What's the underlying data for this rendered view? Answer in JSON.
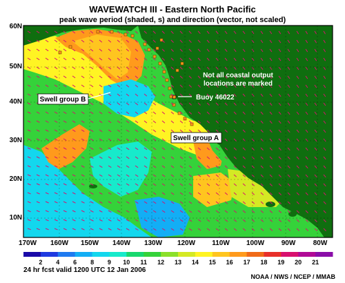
{
  "title": "WAVEWATCH III - Eastern North Pacific",
  "subtitle": "peak wave period (shaded, s) and direction (vector, not scaled)",
  "latitude_labels": [
    "60N",
    "50N",
    "40N",
    "30N",
    "20N",
    "10N"
  ],
  "longitude_labels": [
    "170W",
    "160W",
    "150W",
    "140W",
    "130W",
    "120W",
    "110W",
    "100W",
    "90W",
    "80W"
  ],
  "colorbar": {
    "values": [
      "2",
      "4",
      "6",
      "8",
      "9",
      "10",
      "11",
      "12",
      "13",
      "14",
      "15",
      "16",
      "17",
      "18",
      "19",
      "20",
      "21"
    ],
    "colors": [
      "#1a0aa8",
      "#1f3ae0",
      "#1f7af0",
      "#13aef5",
      "#13d7ee",
      "#17eacb",
      "#18d86e",
      "#35d23a",
      "#8be02a",
      "#d4e924",
      "#fff423",
      "#ffc51f",
      "#ff9a1c",
      "#f06a18",
      "#e8302a",
      "#d8106e",
      "#b00a96",
      "#8a0ea8"
    ]
  },
  "annotations": {
    "swell_b": "Swell group B",
    "swell_a": "Swell group A",
    "note": "Not all coastal output locations are marked",
    "buoy": "Buoy 46022"
  },
  "footer": {
    "valid": "24 hr fcst valid 1200 UTC  12 Jan 2006",
    "credit": "NOAA / NWS / NCEP / MMAB"
  },
  "colors": {
    "land": "#0f6e0f",
    "ocean_warm": "#ff9a1c",
    "ocean_mid": "#35d23a",
    "ocean_cool": "#13d7ee",
    "ocean_yellow": "#fff423"
  }
}
